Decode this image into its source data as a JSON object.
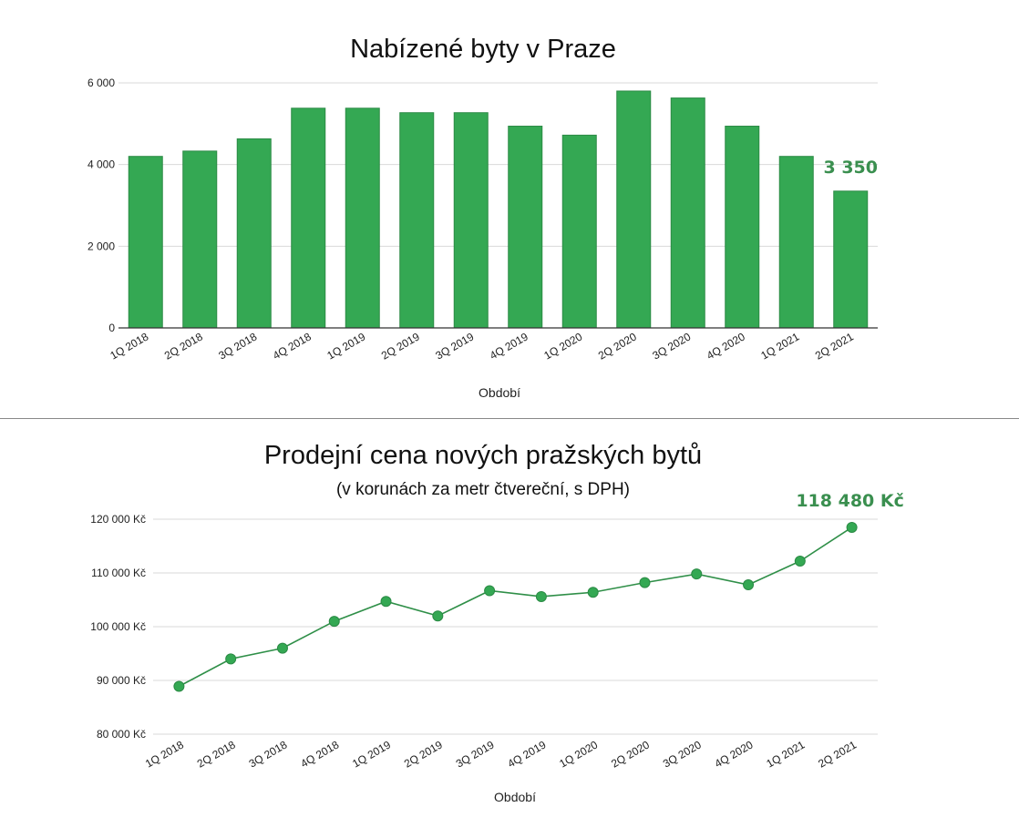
{
  "chart_data": [
    {
      "type": "bar",
      "title": "Nabízené byty v Praze",
      "xlabel": "Období",
      "ylabel": "",
      "categories": [
        "1Q 2018",
        "2Q 2018",
        "3Q 2018",
        "4Q 2018",
        "1Q 2019",
        "2Q 2019",
        "3Q 2019",
        "4Q 2019",
        "1Q 2020",
        "2Q 2020",
        "3Q 2020",
        "4Q 2020",
        "1Q 2021",
        "2Q 2021"
      ],
      "values": [
        4200,
        4330,
        4630,
        5380,
        5380,
        5270,
        5270,
        4940,
        4720,
        5800,
        5630,
        4940,
        4200,
        3350
      ],
      "ylim": [
        0,
        6000
      ],
      "yticks": [
        0,
        2000,
        4000,
        6000
      ],
      "ytick_labels": [
        "0",
        "2 000",
        "4 000",
        "6 000"
      ],
      "annotation": {
        "label": "3 350",
        "category": "2Q 2021",
        "value": 3350
      },
      "grid": true,
      "color": "#34a853"
    },
    {
      "type": "line",
      "title": "Prodejní cena nových pražských bytů",
      "subtitle": "(v korunách za metr čtvereční, s DPH)",
      "xlabel": "Období",
      "ylabel": "",
      "categories": [
        "1Q 2018",
        "2Q 2018",
        "3Q 2018",
        "4Q 2018",
        "1Q 2019",
        "2Q 2019",
        "3Q 2019",
        "4Q 2019",
        "1Q 2020",
        "2Q 2020",
        "3Q 2020",
        "4Q 2020",
        "1Q 2021",
        "2Q 2021"
      ],
      "values": [
        88900,
        94000,
        96000,
        101000,
        104700,
        102000,
        106700,
        105600,
        106400,
        108200,
        109800,
        107800,
        112200,
        118480
      ],
      "ylim": [
        80000,
        120000
      ],
      "yticks": [
        80000,
        90000,
        100000,
        110000,
        120000
      ],
      "ytick_labels": [
        "80 000 Kč",
        "90 000 Kč",
        "100 000 Kč",
        "110 000 Kč",
        "120 000 Kč"
      ],
      "annotation": {
        "label": "118 480 Kč",
        "category": "2Q 2021",
        "value": 118480
      },
      "grid": true,
      "color": "#34a853"
    }
  ]
}
